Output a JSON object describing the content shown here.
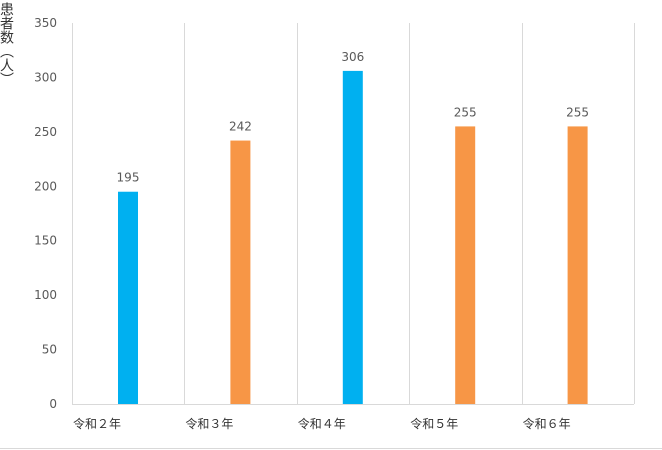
{
  "chart_data": {
    "type": "bar",
    "title": "",
    "xlabel": "",
    "ylabel": "患者数（人）",
    "ylim": [
      0,
      350
    ],
    "yticks": [
      0,
      50,
      100,
      150,
      200,
      250,
      300,
      350
    ],
    "categories": [
      "令和２年",
      "令和３年",
      "令和４年",
      "令和５年",
      "令和６年"
    ],
    "values": [
      195,
      242,
      306,
      255,
      255
    ],
    "bar_colors": [
      "#00b0f0",
      "#f79646",
      "#00b0f0",
      "#f79646",
      "#f79646"
    ],
    "data_labels": true,
    "grid": "vertical",
    "legend": "none"
  }
}
